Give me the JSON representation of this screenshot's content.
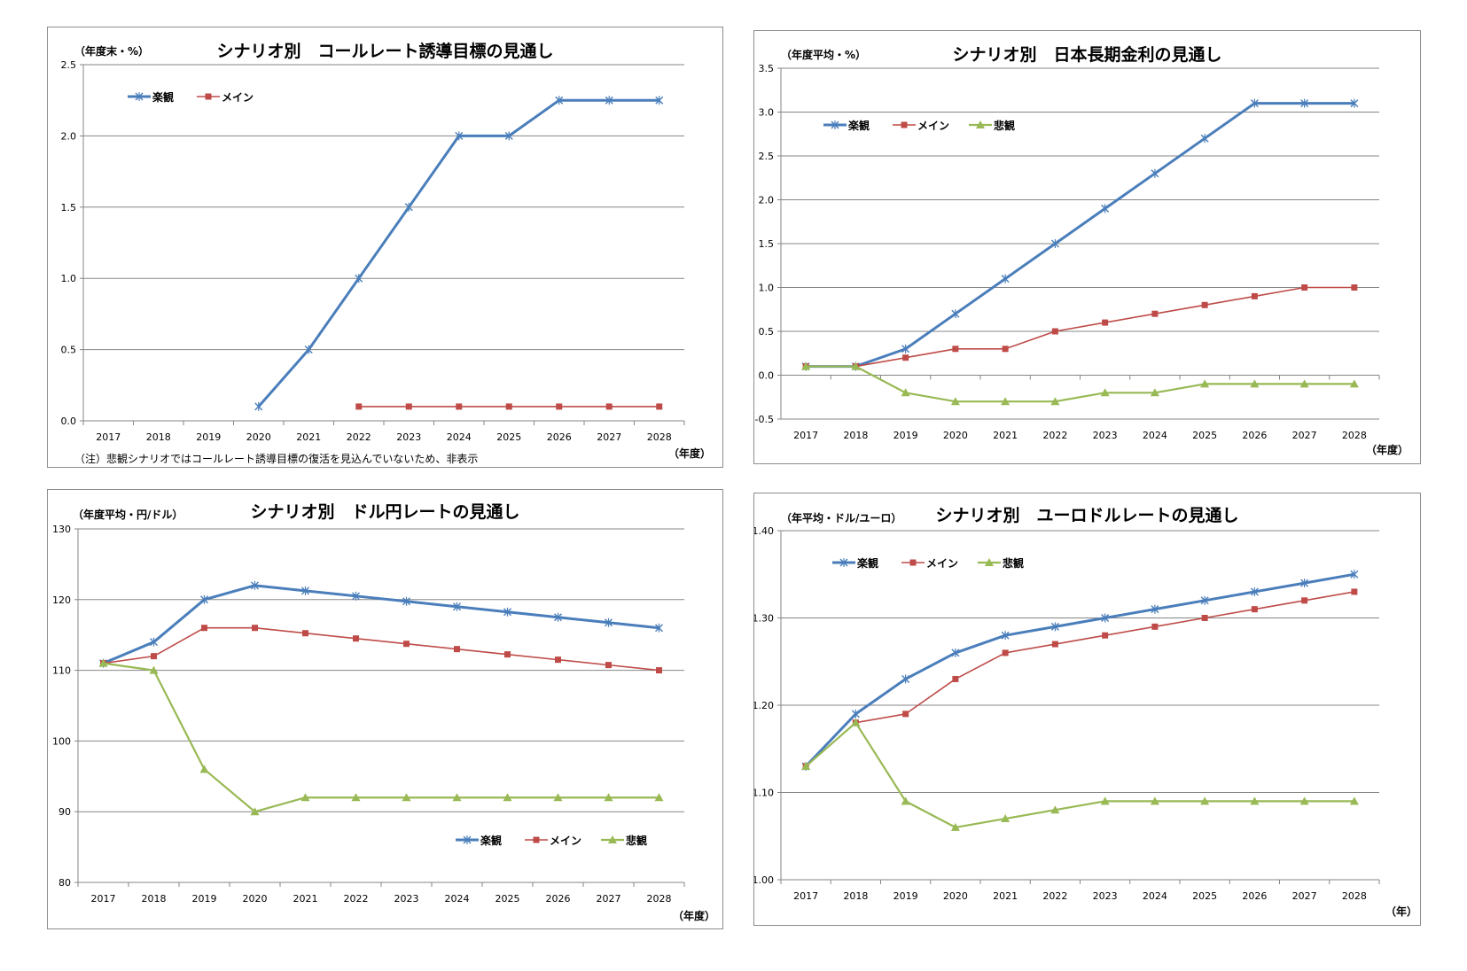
{
  "colors": {
    "rakkan": "#4a7ebb",
    "main": "#be4b48",
    "hikan": "#98b954",
    "grid": "#868686",
    "axis": "#868686"
  },
  "charts": [
    {
      "id": "call",
      "title": "シナリオ別　コールレート誘導目標の見通し",
      "unit": "（年度末・%）",
      "xunit": "（年度）",
      "note": "（注）悲観シナリオではコールレート誘導目標の復活を見込んでいないため、非表示",
      "legend_pos": "top-left"
    },
    {
      "id": "jgb",
      "title": "シナリオ別　日本長期金利の見通し",
      "unit": "（年度平均・%）",
      "xunit": "（年度）",
      "note": "",
      "legend_pos": "top-left"
    },
    {
      "id": "usdjpy",
      "title": "シナリオ別　ドル円レートの見通し",
      "unit": "（年度平均・円/ドル）",
      "xunit": "（年度）",
      "note": "",
      "legend_pos": "bottom-right"
    },
    {
      "id": "eurusd",
      "title": "シナリオ別　ユーロドルレートの見通し",
      "unit": "（年平均・ドル/ユーロ）",
      "xunit": "（年）",
      "note": "",
      "legend_pos": "top-left"
    }
  ],
  "chart_data": [
    {
      "type": "line",
      "title": "シナリオ別　コールレート誘導目標の見通し",
      "ylabel": "（年度末・%）",
      "xlabel": "（年度）",
      "categories": [
        "2017",
        "2018",
        "2019",
        "2020",
        "2021",
        "2022",
        "2023",
        "2024",
        "2025",
        "2026",
        "2027",
        "2028"
      ],
      "ylim": [
        0,
        2.5
      ],
      "yticks": [
        "0.0",
        "0.5",
        "1.0",
        "1.5",
        "2.0",
        "2.5"
      ],
      "grid": true,
      "series": [
        {
          "name": "楽観",
          "values": [
            null,
            null,
            null,
            0.1,
            0.5,
            1.0,
            1.5,
            2.0,
            2.0,
            2.25,
            2.25,
            2.25
          ]
        },
        {
          "name": "メイン",
          "values": [
            null,
            null,
            null,
            null,
            null,
            0.1,
            0.1,
            0.1,
            0.1,
            0.1,
            0.1,
            0.1
          ]
        }
      ]
    },
    {
      "type": "line",
      "title": "シナリオ別　日本長期金利の見通し",
      "ylabel": "（年度平均・%）",
      "xlabel": "（年度）",
      "categories": [
        "2017",
        "2018",
        "2019",
        "2020",
        "2021",
        "2022",
        "2023",
        "2024",
        "2025",
        "2026",
        "2027",
        "2028"
      ],
      "ylim": [
        -0.5,
        3.5
      ],
      "yticks": [
        "-0.5",
        "0.0",
        "0.5",
        "1.0",
        "1.5",
        "2.0",
        "2.5",
        "3.0",
        "3.5"
      ],
      "grid": true,
      "series": [
        {
          "name": "楽観",
          "values": [
            0.1,
            0.1,
            0.3,
            0.7,
            1.1,
            1.5,
            1.9,
            2.3,
            2.7,
            3.1,
            3.1,
            3.1
          ]
        },
        {
          "name": "メイン",
          "values": [
            0.1,
            0.1,
            0.2,
            0.3,
            0.3,
            0.5,
            0.6,
            0.7,
            0.8,
            0.9,
            1.0,
            1.0
          ]
        },
        {
          "name": "悲観",
          "values": [
            0.1,
            0.1,
            -0.2,
            -0.3,
            -0.3,
            -0.3,
            -0.2,
            -0.2,
            -0.1,
            -0.1,
            -0.1,
            -0.1
          ]
        }
      ]
    },
    {
      "type": "line",
      "title": "シナリオ別　ドル円レートの見通し",
      "ylabel": "（年度平均・円/ドル）",
      "xlabel": "（年度）",
      "categories": [
        "2017",
        "2018",
        "2019",
        "2020",
        "2021",
        "2022",
        "2023",
        "2024",
        "2025",
        "2026",
        "2027",
        "2028"
      ],
      "ylim": [
        80,
        130
      ],
      "yticks": [
        "80",
        "90",
        "100",
        "110",
        "120",
        "130"
      ],
      "grid": true,
      "series": [
        {
          "name": "楽観",
          "values": [
            111,
            114,
            120,
            122,
            121.25,
            120.5,
            119.75,
            119,
            118.25,
            117.5,
            116.75,
            116
          ]
        },
        {
          "name": "メイン",
          "values": [
            111,
            112,
            116,
            116,
            115.25,
            114.5,
            113.75,
            113,
            112.25,
            111.5,
            110.75,
            110
          ]
        },
        {
          "name": "悲観",
          "values": [
            111,
            110,
            96,
            90,
            92,
            92,
            92,
            92,
            92,
            92,
            92,
            92
          ]
        }
      ]
    },
    {
      "type": "line",
      "title": "シナリオ別　ユーロドルレートの見通し",
      "ylabel": "（年平均・ドル/ユーロ）",
      "xlabel": "（年）",
      "categories": [
        "2017",
        "2018",
        "2019",
        "2020",
        "2021",
        "2022",
        "2023",
        "2024",
        "2025",
        "2026",
        "2027",
        "2028"
      ],
      "ylim": [
        1.0,
        1.4
      ],
      "yticks": [
        "1.00",
        "1.10",
        "1.20",
        "1.30",
        "1.40"
      ],
      "grid": true,
      "series": [
        {
          "name": "楽観",
          "values": [
            1.13,
            1.19,
            1.23,
            1.26,
            1.28,
            1.29,
            1.3,
            1.31,
            1.32,
            1.33,
            1.34,
            1.35
          ]
        },
        {
          "name": "メイン",
          "values": [
            1.13,
            1.18,
            1.19,
            1.23,
            1.26,
            1.27,
            1.28,
            1.29,
            1.3,
            1.31,
            1.32,
            1.33
          ]
        },
        {
          "name": "悲観",
          "values": [
            1.13,
            1.18,
            1.09,
            1.06,
            1.07,
            1.08,
            1.09,
            1.09,
            1.09,
            1.09,
            1.09,
            1.09
          ]
        }
      ]
    }
  ]
}
